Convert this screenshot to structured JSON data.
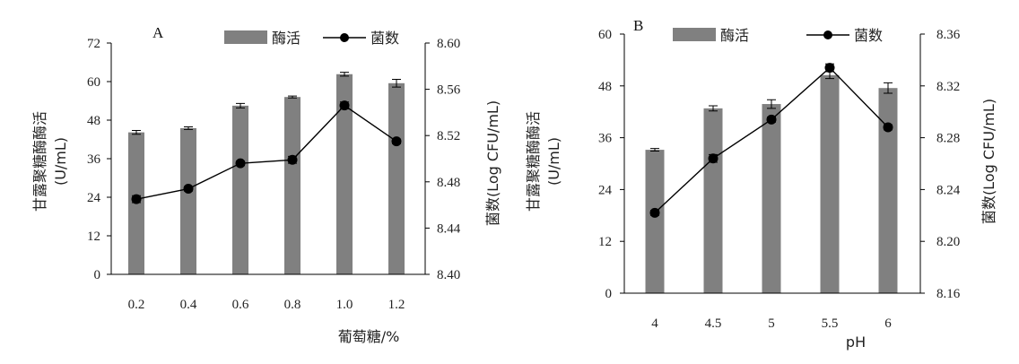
{
  "chart_data": [
    {
      "type": "bar",
      "panel_label": "A",
      "categories": [
        "0.2",
        "0.4",
        "0.6",
        "0.8",
        "1.0",
        "1.2"
      ],
      "xlabel": "葡萄糖/%",
      "ylabel_left_line1": "甘露聚糖酶酶活",
      "ylabel_left_line2": "(U/mL)",
      "ylabel_right": "菌数(Log CFU/mL)",
      "ylim": [
        0,
        72
      ],
      "yticks": [
        "0",
        "12",
        "24",
        "36",
        "48",
        "60",
        "72"
      ],
      "ylim_right": [
        8.4,
        8.6
      ],
      "yticks_right": [
        "8.40",
        "8.44",
        "8.48",
        "8.52",
        "8.56",
        "8.60"
      ],
      "legend_position": "top",
      "series": [
        {
          "name": "酶活",
          "kind": "bar",
          "color": "#808080",
          "values": [
            44.2,
            45.5,
            52.5,
            55.2,
            62.3,
            59.5
          ],
          "errors": [
            0.6,
            0.4,
            0.7,
            0.3,
            0.6,
            1.2
          ]
        },
        {
          "name": "菌数",
          "kind": "line",
          "axis": "right",
          "color": "#000000",
          "values": [
            8.465,
            8.474,
            8.496,
            8.499,
            8.546,
            8.515
          ],
          "errors": [
            0.003,
            0.002,
            0.002,
            0.003,
            0.003,
            0.002
          ]
        }
      ]
    },
    {
      "type": "bar",
      "panel_label": "B",
      "categories": [
        "4",
        "4.5",
        "5",
        "5.5",
        "6"
      ],
      "xlabel": "pH",
      "ylabel_left_line1": "甘露聚糖酶酶活",
      "ylabel_left_line2": "(U/mL)",
      "ylabel_right": "菌数(Log CFU/mL)",
      "ylim": [
        0,
        60
      ],
      "yticks": [
        "0",
        "12",
        "24",
        "36",
        "48",
        "60"
      ],
      "ylim_right": [
        8.16,
        8.36
      ],
      "yticks_right": [
        "8.16",
        "8.20",
        "8.24",
        "8.28",
        "8.32",
        "8.36"
      ],
      "legend_position": "top",
      "series": [
        {
          "name": "酶活",
          "kind": "bar",
          "color": "#808080",
          "values": [
            33.2,
            42.8,
            43.8,
            50.5,
            47.5
          ],
          "errors": [
            0.3,
            0.6,
            1.0,
            0.8,
            1.2
          ]
        },
        {
          "name": "菌数",
          "kind": "line",
          "axis": "right",
          "color": "#000000",
          "values": [
            8.222,
            8.264,
            8.294,
            8.334,
            8.288
          ],
          "errors": [
            0.002,
            0.003,
            0.002,
            0.003,
            0.002
          ]
        }
      ]
    }
  ]
}
